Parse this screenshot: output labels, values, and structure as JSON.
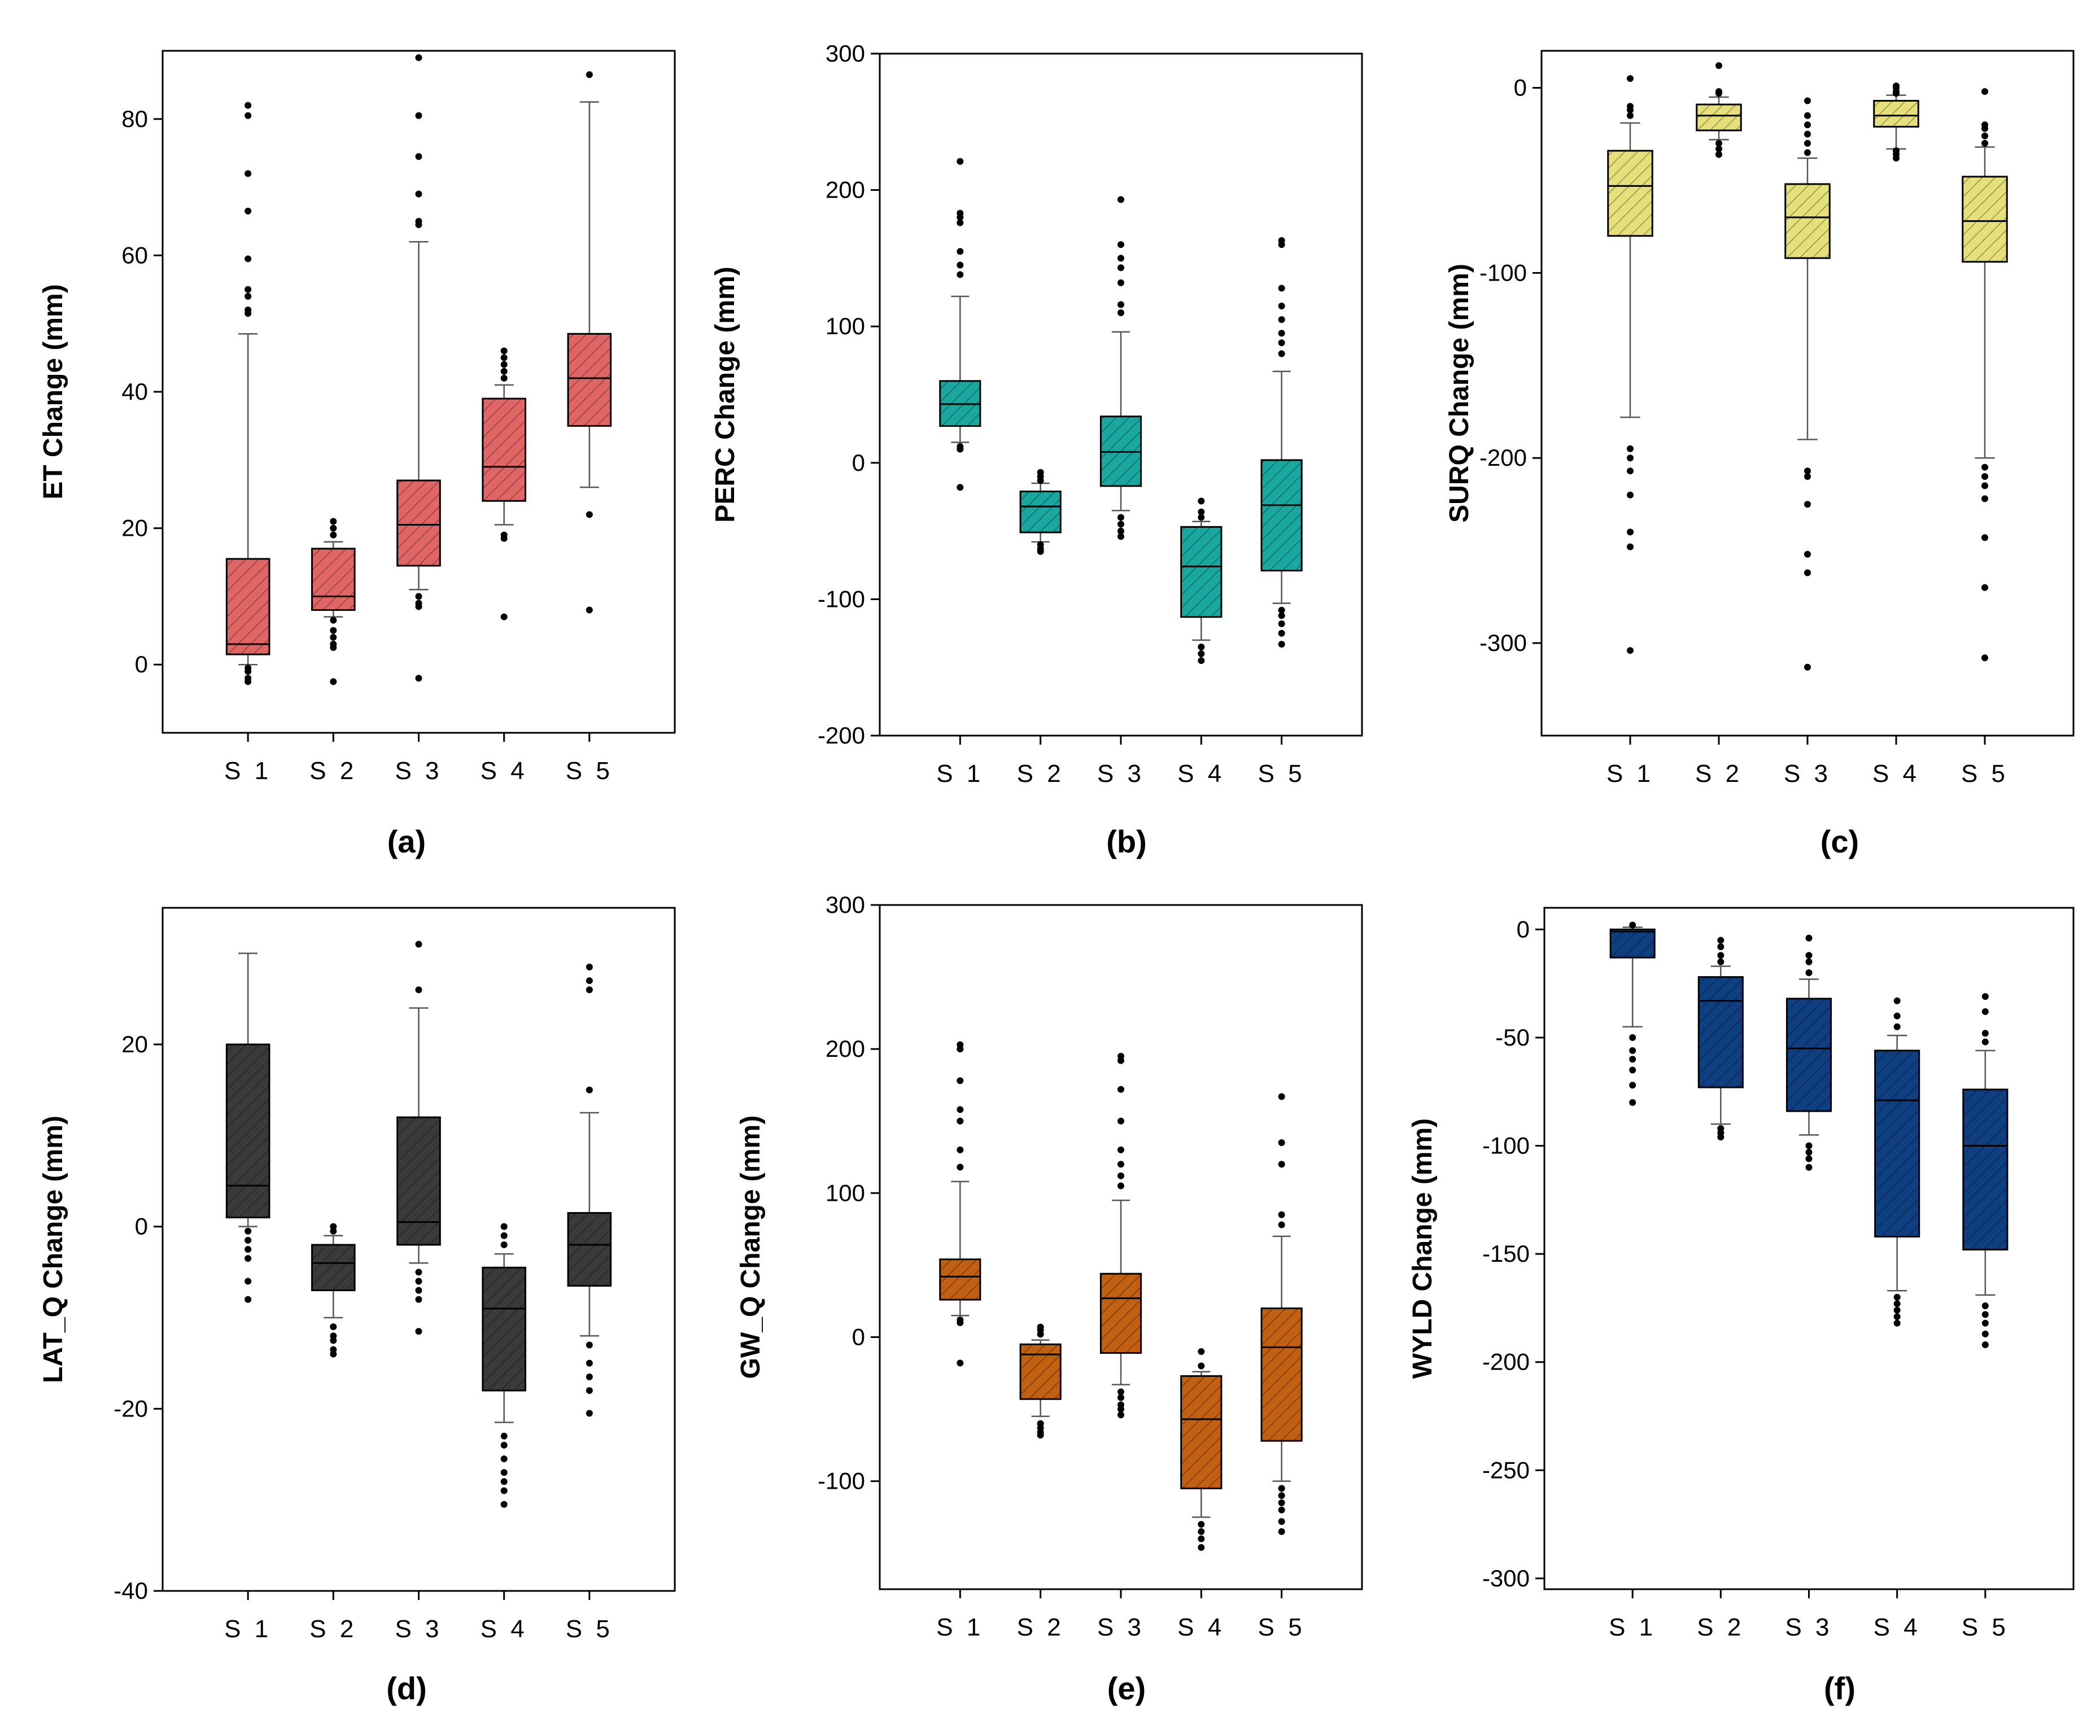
{
  "chart_data": [
    {
      "type": "box",
      "panel_label": "(a)",
      "ylabel": "ET Change (mm)",
      "categories": [
        "S 1",
        "S 2",
        "S 3",
        "S 4",
        "S 5"
      ],
      "ylim": [
        -10,
        90
      ],
      "yticks": [
        0,
        20,
        40,
        60,
        80
      ],
      "color": "#e06666",
      "boxes": [
        {
          "min": 0,
          "q1": 1.5,
          "median": 3,
          "q3": 15.5,
          "max": 48.5,
          "outliers": [
            -1,
            -2,
            -2.5,
            -0.5,
            51.5,
            52,
            54,
            55,
            59.5,
            66.5,
            72,
            80.5,
            82
          ]
        },
        {
          "min": 7,
          "q1": 8,
          "median": 10,
          "q3": 17,
          "max": 18,
          "outliers": [
            6.5,
            5,
            4,
            3,
            2.5,
            -2.5,
            19,
            20,
            21
          ]
        },
        {
          "min": 11,
          "q1": 14.5,
          "median": 20.5,
          "q3": 27,
          "max": 62,
          "outliers": [
            10,
            9,
            8.5,
            -2,
            64.5,
            65,
            69,
            74.5,
            80.5,
            89
          ]
        },
        {
          "min": 20.5,
          "q1": 24,
          "median": 29,
          "q3": 39,
          "max": 41,
          "outliers": [
            19,
            18.5,
            7,
            42,
            43,
            44,
            45,
            46
          ]
        },
        {
          "min": 26,
          "q1": 35,
          "median": 42,
          "q3": 48.5,
          "max": 82.5,
          "outliers": [
            22,
            8,
            86.5
          ]
        }
      ]
    },
    {
      "type": "box",
      "panel_label": "(b)",
      "ylabel": "PERC Change (mm)",
      "categories": [
        "S 1",
        "S 2",
        "S 3",
        "S 4",
        "S 5"
      ],
      "ylim": [
        -200,
        300
      ],
      "yticks": [
        -200,
        -100,
        0,
        100,
        200,
        300
      ],
      "color": "#1aa7a0",
      "boxes": [
        {
          "min": 15,
          "q1": 27,
          "median": 43,
          "q3": 60,
          "max": 122,
          "outliers": [
            12,
            10,
            -18,
            138,
            145,
            155,
            176,
            180,
            183,
            221
          ]
        },
        {
          "min": -58,
          "q1": -51,
          "median": -32,
          "q3": -21,
          "max": -15,
          "outliers": [
            -60,
            -63,
            -65,
            -13,
            -10,
            -7
          ]
        },
        {
          "min": -35,
          "q1": -17,
          "median": 8,
          "q3": 34,
          "max": 96,
          "outliers": [
            -40,
            -45,
            -50,
            -54,
            110,
            116,
            132,
            143,
            150,
            160,
            193
          ]
        },
        {
          "min": -130,
          "q1": -113,
          "median": -76,
          "q3": -47,
          "max": -43,
          "outliers": [
            -135,
            -140,
            -145,
            -40,
            -36,
            -28
          ]
        },
        {
          "min": -103,
          "q1": -79,
          "median": -31,
          "q3": 2,
          "max": 67,
          "outliers": [
            -108,
            -112,
            -118,
            -125,
            -133,
            80,
            88,
            95,
            105,
            115,
            128,
            160,
            163
          ]
        }
      ]
    },
    {
      "type": "box",
      "panel_label": "(c)",
      "ylabel": "SURQ Change (mm)",
      "categories": [
        "S 1",
        "S 2",
        "S 3",
        "S 4",
        "S 5"
      ],
      "ylim": [
        -350,
        20
      ],
      "yticks": [
        -300,
        -200,
        -100,
        0
      ],
      "color": "#e5e07a",
      "boxes": [
        {
          "min": -178,
          "q1": -80,
          "median": -53,
          "q3": -34,
          "max": -19,
          "outliers": [
            -195,
            -200,
            -207,
            -220,
            -240,
            -248,
            -304,
            -15,
            -12,
            -10,
            5
          ]
        },
        {
          "min": -28,
          "q1": -23,
          "median": -15,
          "q3": -9,
          "max": -5,
          "outliers": [
            -30,
            -33,
            -36,
            -3,
            -2,
            12
          ]
        },
        {
          "min": -190,
          "q1": -92,
          "median": -70,
          "q3": -52,
          "max": -38,
          "outliers": [
            -207,
            -210,
            -225,
            -252,
            -262,
            -313,
            -35,
            -30,
            -25,
            -20,
            -15,
            -7
          ]
        },
        {
          "min": -33,
          "q1": -21,
          "median": -15,
          "q3": -7,
          "max": -4,
          "outliers": [
            -34,
            -36,
            -38,
            -3,
            -2,
            0,
            1
          ]
        },
        {
          "min": -200,
          "q1": -94,
          "median": -72,
          "q3": -48,
          "max": -32,
          "outliers": [
            -205,
            -210,
            -215,
            -222,
            -243,
            -270,
            -308,
            -30,
            -26,
            -22,
            -20,
            -2
          ]
        }
      ]
    },
    {
      "type": "box",
      "panel_label": "(d)",
      "ylabel": "LAT_Q Change (mm)",
      "categories": [
        "S 1",
        "S 2",
        "S 3",
        "S 4",
        "S 5"
      ],
      "ylim": [
        -40,
        35
      ],
      "yticks": [
        -40,
        -20,
        0,
        20
      ],
      "color": "#3a3a3a",
      "boxes": [
        {
          "min": 0,
          "q1": 1,
          "median": 4.5,
          "q3": 20,
          "max": 30,
          "outliers": [
            -0.5,
            -1.5,
            -2.5,
            -3.5,
            -6,
            -8
          ]
        },
        {
          "min": -10,
          "q1": -7,
          "median": -4,
          "q3": -2,
          "max": -1,
          "outliers": [
            -11,
            -12,
            -12.5,
            -13.5,
            -14,
            -0.5,
            0
          ]
        },
        {
          "min": -4,
          "q1": -2,
          "median": 0.5,
          "q3": 12,
          "max": 24,
          "outliers": [
            -5,
            -6,
            -7,
            -8,
            -11.5,
            26,
            31
          ]
        },
        {
          "min": -21.5,
          "q1": -18,
          "median": -9,
          "q3": -4.5,
          "max": -3,
          "outliers": [
            -23,
            -24,
            -25.5,
            -27,
            -28,
            -29,
            -30.5,
            -2,
            -1,
            0
          ]
        },
        {
          "min": -12,
          "q1": -6.5,
          "median": -2,
          "q3": 1.5,
          "max": 12.5,
          "outliers": [
            -13,
            -15,
            -16.5,
            -18,
            -20.5,
            15,
            26,
            27,
            28.5
          ]
        }
      ]
    },
    {
      "type": "box",
      "panel_label": "(e)",
      "ylabel": "GW_Q Change (mm)",
      "categories": [
        "S 1",
        "S 2",
        "S 3",
        "S 4",
        "S 5"
      ],
      "ylim": [
        -175,
        300
      ],
      "yticks": [
        -100,
        0,
        100,
        200,
        300
      ],
      "color": "#c06010",
      "boxes": [
        {
          "min": 15,
          "q1": 26,
          "median": 42,
          "q3": 54,
          "max": 108,
          "outliers": [
            12,
            10,
            -18,
            118,
            130,
            150,
            158,
            178,
            200,
            203
          ]
        },
        {
          "min": -55,
          "q1": -43,
          "median": -12,
          "q3": -5,
          "max": -2,
          "outliers": [
            -60,
            -63,
            -66,
            -68,
            2,
            5,
            7
          ]
        },
        {
          "min": -33,
          "q1": -11,
          "median": 27,
          "q3": 44,
          "max": 95,
          "outliers": [
            -38,
            -42,
            -47,
            -50,
            -54,
            105,
            112,
            120,
            130,
            150,
            172,
            192,
            195
          ]
        },
        {
          "min": -125,
          "q1": -105,
          "median": -57,
          "q3": -27,
          "max": -24,
          "outliers": [
            -130,
            -135,
            -140,
            -146,
            -20,
            -10
          ]
        },
        {
          "min": -100,
          "q1": -72,
          "median": -7,
          "q3": 20,
          "max": 70,
          "outliers": [
            -105,
            -110,
            -115,
            -120,
            -128,
            -135,
            78,
            85,
            120,
            135,
            167
          ]
        }
      ]
    },
    {
      "type": "box",
      "panel_label": "(f)",
      "ylabel": "WYLD Change (mm)",
      "categories": [
        "S 1",
        "S 2",
        "S 3",
        "S 4",
        "S 5"
      ],
      "ylim": [
        -305,
        10
      ],
      "yticks": [
        -300,
        -250,
        -200,
        -150,
        -100,
        -50,
        0
      ],
      "color": "#0f3f80",
      "boxes": [
        {
          "min": -45,
          "q1": -13,
          "median": -1,
          "q3": 0,
          "max": 1,
          "outliers": [
            -50,
            -56,
            -60,
            -65,
            -72,
            -80,
            2
          ]
        },
        {
          "min": -90,
          "q1": -73,
          "median": -33,
          "q3": -22,
          "max": -17,
          "outliers": [
            -92,
            -94,
            -96,
            -15,
            -12,
            -8,
            -5
          ]
        },
        {
          "min": -95,
          "q1": -84,
          "median": -55,
          "q3": -32,
          "max": -23,
          "outliers": [
            -100,
            -103,
            -106,
            -110,
            -20,
            -15,
            -12,
            -4
          ]
        },
        {
          "min": -167,
          "q1": -142,
          "median": -79,
          "q3": -56,
          "max": -49,
          "outliers": [
            -170,
            -173,
            -176,
            -179,
            -182,
            -45,
            -40,
            -33
          ]
        },
        {
          "min": -169,
          "q1": -148,
          "median": -100,
          "q3": -74,
          "max": -56,
          "outliers": [
            -174,
            -178,
            -182,
            -187,
            -192,
            -52,
            -48,
            -38,
            -31
          ]
        }
      ]
    }
  ]
}
